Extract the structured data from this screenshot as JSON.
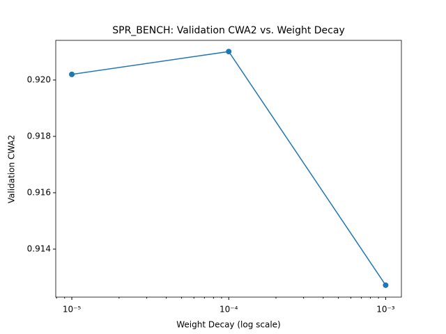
{
  "chart_data": {
    "type": "line",
    "title": "SPR_BENCH: Validation CWA2 vs. Weight Decay",
    "xlabel": "Weight Decay (log scale)",
    "ylabel": "Validation CWA2",
    "xscale": "log",
    "x": [
      1e-05,
      0.0001,
      0.001
    ],
    "series": [
      {
        "name": "Validation CWA2",
        "color": "#1f77b4",
        "values": [
          0.9202,
          0.92101,
          0.91272
        ]
      }
    ],
    "xlim": [
      7.9e-06,
      0.00126
    ],
    "ylim": [
      0.912296,
      0.921407
    ],
    "xticks": [
      {
        "value": 1e-05,
        "label": "10⁻⁵"
      },
      {
        "value": 0.0001,
        "label": "10⁻⁴"
      },
      {
        "value": 0.001,
        "label": "10⁻³"
      }
    ],
    "xminorticks": [
      8e-06,
      9e-06,
      2e-05,
      3e-05,
      4e-05,
      5e-05,
      6e-05,
      7e-05,
      8e-05,
      9e-05,
      0.0002,
      0.0003,
      0.0004,
      0.0005,
      0.0006,
      0.0007,
      0.0008,
      0.0009
    ],
    "yticks": [
      {
        "value": 0.914,
        "label": "0.914"
      },
      {
        "value": 0.916,
        "label": "0.916"
      },
      {
        "value": 0.918,
        "label": "0.918"
      },
      {
        "value": 0.92,
        "label": "0.920"
      }
    ],
    "grid": false
  }
}
